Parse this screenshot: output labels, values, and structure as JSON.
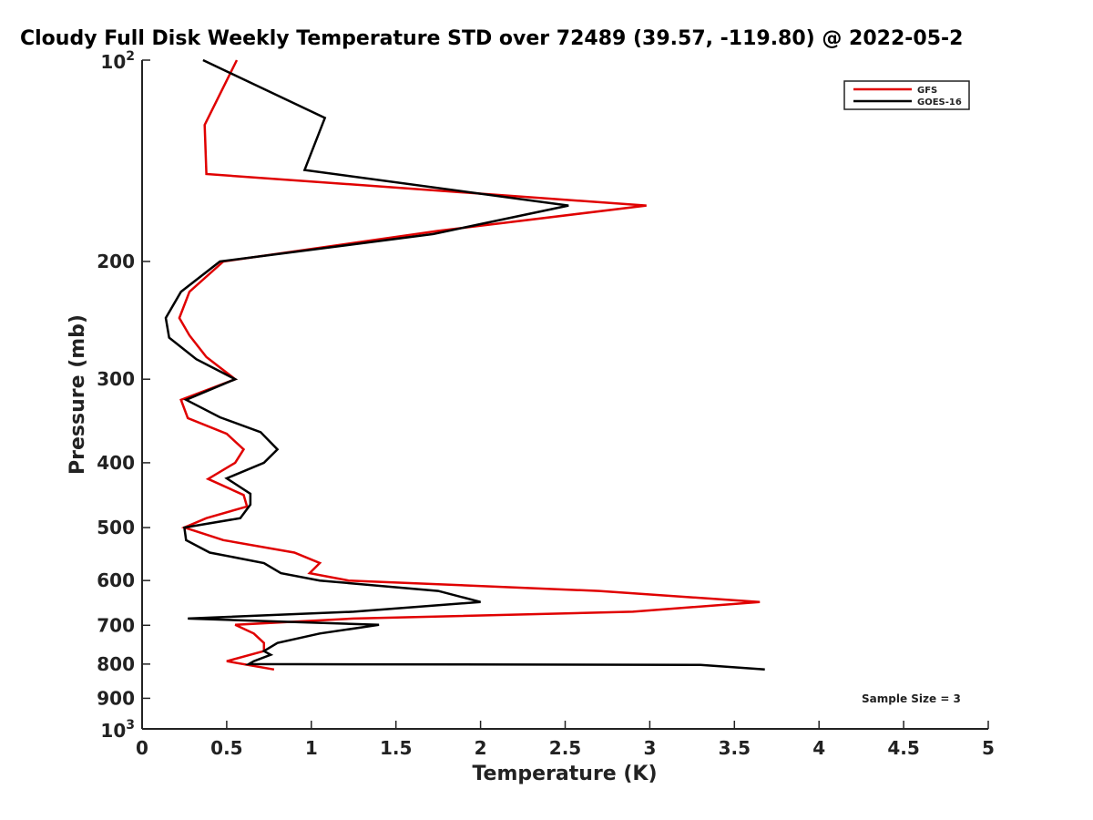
{
  "chart_data": {
    "type": "line",
    "title": "Cloudy Full Disk Weekly Temperature STD over 72489 (39.57, -119.80) @ 2022-05-2",
    "xlabel": "Temperature (K)",
    "ylabel": "Pressure (mb)",
    "xlim": [
      0,
      5
    ],
    "ylim": [
      100,
      1000
    ],
    "y_scale": "log",
    "y_reversed": true,
    "grid": false,
    "legend_position": "top-right",
    "x_ticks": [
      0,
      0.5,
      1,
      1.5,
      2,
      2.5,
      3,
      3.5,
      4,
      4.5,
      5
    ],
    "x_tick_labels": [
      "0",
      "0.5",
      "1",
      "1.5",
      "2",
      "2.5",
      "3",
      "3.5",
      "4",
      "4.5",
      "5"
    ],
    "y_ticks": [
      {
        "value": 100,
        "base": "10",
        "exp": "2"
      },
      {
        "value": 200,
        "label": "200"
      },
      {
        "value": 300,
        "label": "300"
      },
      {
        "value": 400,
        "label": "400"
      },
      {
        "value": 500,
        "label": "500"
      },
      {
        "value": 600,
        "label": "600"
      },
      {
        "value": 700,
        "label": "700"
      },
      {
        "value": 800,
        "label": "800"
      },
      {
        "value": 900,
        "label": "900"
      },
      {
        "value": 1000,
        "base": "10",
        "exp": "3"
      }
    ],
    "series": [
      {
        "name": "GFS",
        "color": "#e00000",
        "points": [
          [
            0.56,
            100
          ],
          [
            0.37,
            125
          ],
          [
            0.38,
            148
          ],
          [
            2.98,
            165
          ],
          [
            1.75,
            180
          ],
          [
            0.48,
            200
          ],
          [
            0.28,
            222
          ],
          [
            0.22,
            243
          ],
          [
            0.28,
            258
          ],
          [
            0.38,
            278
          ],
          [
            0.55,
            300
          ],
          [
            0.23,
            322
          ],
          [
            0.27,
            343
          ],
          [
            0.5,
            362
          ],
          [
            0.6,
            382
          ],
          [
            0.55,
            400
          ],
          [
            0.39,
            423
          ],
          [
            0.6,
            447
          ],
          [
            0.62,
            465
          ],
          [
            0.38,
            484
          ],
          [
            0.25,
            500
          ],
          [
            0.48,
            522
          ],
          [
            0.9,
            545
          ],
          [
            1.05,
            565
          ],
          [
            0.99,
            585
          ],
          [
            1.22,
            600
          ],
          [
            2.7,
            622
          ],
          [
            3.65,
            646
          ],
          [
            2.9,
            668
          ],
          [
            1.25,
            684
          ],
          [
            0.55,
            699
          ],
          [
            0.66,
            720
          ],
          [
            0.72,
            744
          ],
          [
            0.72,
            765
          ],
          [
            0.5,
            792
          ],
          [
            0.78,
            815
          ]
        ]
      },
      {
        "name": "GOES-16",
        "color": "#000000",
        "points": [
          [
            0.36,
            100
          ],
          [
            1.08,
            122
          ],
          [
            0.96,
            146
          ],
          [
            2.52,
            165
          ],
          [
            1.72,
            182
          ],
          [
            0.46,
            200
          ],
          [
            0.23,
            222
          ],
          [
            0.14,
            243
          ],
          [
            0.16,
            260
          ],
          [
            0.32,
            280
          ],
          [
            0.55,
            300
          ],
          [
            0.26,
            322
          ],
          [
            0.46,
            342
          ],
          [
            0.7,
            360
          ],
          [
            0.8,
            382
          ],
          [
            0.72,
            400
          ],
          [
            0.5,
            422
          ],
          [
            0.64,
            445
          ],
          [
            0.64,
            462
          ],
          [
            0.58,
            484
          ],
          [
            0.25,
            500
          ],
          [
            0.26,
            522
          ],
          [
            0.4,
            545
          ],
          [
            0.72,
            565
          ],
          [
            0.82,
            585
          ],
          [
            1.05,
            600
          ],
          [
            1.75,
            622
          ],
          [
            2.0,
            646
          ],
          [
            1.25,
            668
          ],
          [
            0.27,
            684
          ],
          [
            1.4,
            699
          ],
          [
            1.05,
            720
          ],
          [
            0.8,
            744
          ],
          [
            0.72,
            765
          ],
          [
            0.76,
            775
          ],
          [
            0.66,
            792
          ],
          [
            0.63,
            800
          ],
          [
            3.3,
            802
          ],
          [
            3.68,
            815
          ]
        ]
      }
    ],
    "annotation": "Sample Size = 3"
  }
}
